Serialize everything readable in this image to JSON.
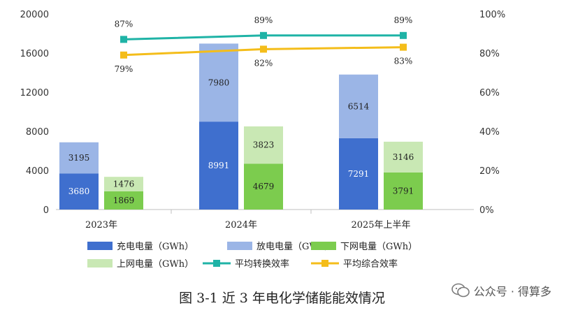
{
  "chart_data": {
    "type": "bar",
    "categories": [
      "2023年",
      "2024年",
      "2025年上半年"
    ],
    "left_axis": {
      "ticks": [
        "0",
        "4000",
        "8000",
        "12000",
        "16000",
        "20000"
      ],
      "ylim": [
        0,
        20000
      ]
    },
    "right_axis": {
      "ticks": [
        "0%",
        "20%",
        "40%",
        "60%",
        "80%",
        "100%"
      ],
      "ylim": [
        0,
        100
      ]
    },
    "series": [
      {
        "name": "充电电量（GWh）",
        "kind": "bar",
        "group": "A",
        "color": "#3f6fce",
        "values": [
          3680,
          8991,
          7291
        ]
      },
      {
        "name": "放电电量（GWh）",
        "kind": "bar",
        "group": "A",
        "color": "#9bb5e6",
        "values": [
          3195,
          7980,
          6514
        ]
      },
      {
        "name": "下网电量（GWh）",
        "kind": "bar",
        "group": "B",
        "color": "#7ccc4e",
        "values": [
          1869,
          4679,
          3791
        ]
      },
      {
        "name": "上网电量（GWh）",
        "kind": "bar",
        "group": "B",
        "color": "#c9e8b4",
        "values": [
          1476,
          3823,
          3146
        ]
      },
      {
        "name": "平均转换效率",
        "kind": "line",
        "color": "#1fb3a6",
        "values": [
          87,
          89,
          89
        ],
        "labels": [
          "87%",
          "89%",
          "89%"
        ]
      },
      {
        "name": "平均综合效率",
        "kind": "line",
        "color": "#f4bd1a",
        "values": [
          79,
          82,
          83
        ],
        "labels": [
          "79%",
          "82%",
          "83%"
        ]
      }
    ]
  },
  "caption": "图 3-1  近 3 年电化学储能能效情况",
  "watermark": {
    "icon": "wechat-official-account-icon",
    "text": "公众号 · 得算多"
  }
}
